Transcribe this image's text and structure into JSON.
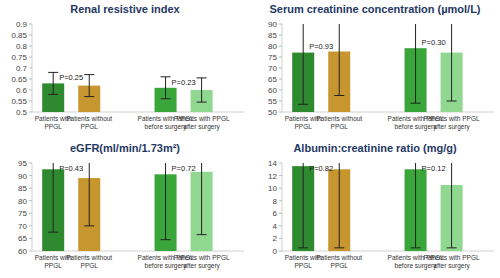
{
  "chart_data": [
    {
      "type": "bar",
      "title": "Renal resistive index",
      "categories": [
        "Patients with PPGL",
        "Patients without PPGL",
        "Patients with PPGL before surgery",
        "Patients with PPGL after surgery"
      ],
      "values": [
        0.63,
        0.62,
        0.61,
        0.6
      ],
      "errors": [
        0.05,
        0.05,
        0.05,
        0.055
      ],
      "colors": [
        "#2f8a2f",
        "#c8962e",
        "#3aa53a",
        "#90d890"
      ],
      "ylim": [
        0.5,
        0.9
      ],
      "yticks": [
        0.5,
        0.55,
        0.6,
        0.65,
        0.7,
        0.75,
        0.8,
        0.85,
        0.9
      ],
      "annotations": [
        "P=0.25",
        "P=0.23"
      ],
      "grid": false
    },
    {
      "type": "bar",
      "title": "Serum creatinine concentration (µmol/L)",
      "categories": [
        "Patients with PPGL",
        "Patients without PPGL",
        "Patients with PPGL before surgery",
        "Patients with PPGL after surgery"
      ],
      "values": [
        77,
        77.5,
        79,
        77
      ],
      "errors": [
        23.5,
        20,
        25,
        22
      ],
      "colors": [
        "#2f8a2f",
        "#c8962e",
        "#3aa53a",
        "#90d890"
      ],
      "ylim": [
        50,
        90
      ],
      "yticks": [
        50,
        55,
        60,
        65,
        70,
        75,
        80,
        85,
        90
      ],
      "annotations": [
        "P=0.93",
        "P=0.30"
      ],
      "grid": false
    },
    {
      "type": "bar",
      "title": "eGFR(ml/min/1.73m²)",
      "categories": [
        "Patients with PPGL",
        "Patients without PPGL",
        "Patients with PPGL before surgery",
        "Patients with PPGL after surgery"
      ],
      "values": [
        92.5,
        89,
        90.5,
        91.5
      ],
      "errors": [
        25,
        19,
        26,
        25
      ],
      "colors": [
        "#2f8a2f",
        "#c8962e",
        "#3aa53a",
        "#90d890"
      ],
      "ylim": [
        60,
        95
      ],
      "yticks": [
        60,
        65,
        70,
        75,
        80,
        85,
        90,
        95
      ],
      "annotations": [
        "P=0.43",
        "P=0.72"
      ],
      "grid": false
    },
    {
      "type": "bar",
      "title": "Albumin:creatinine ratio (mg/g)",
      "categories": [
        "Patients with PPGL",
        "Patients without PPGL",
        "Patients with PPGL before surgery",
        "Patients with PPGL after surgery"
      ],
      "values": [
        13.5,
        13,
        13,
        10.5
      ],
      "errors": [
        13,
        12.5,
        12.5,
        10
      ],
      "colors": [
        "#2f8a2f",
        "#c8962e",
        "#3aa53a",
        "#90d890"
      ],
      "ylim": [
        0,
        14
      ],
      "yticks": [
        0,
        2,
        4,
        6,
        8,
        10,
        12,
        14
      ],
      "annotations": [
        "P=0.82",
        "P=0.12"
      ],
      "grid": false
    }
  ]
}
